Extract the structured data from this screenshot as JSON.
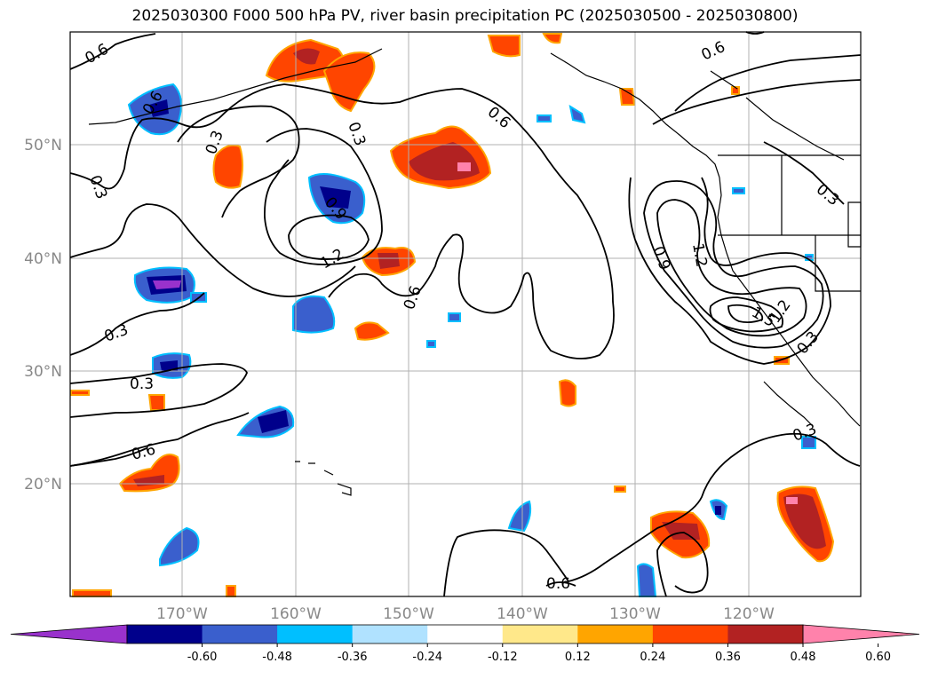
{
  "title": "2025030300 F000 500 hPa PV, river basin precipitation PC (2025030500 - 2025030800)",
  "map": {
    "lat_labels": [
      "50°N",
      "40°N",
      "30°N",
      "20°N"
    ],
    "lon_labels": [
      "170°W",
      "160°W",
      "150°W",
      "140°W",
      "130°W",
      "120°W"
    ],
    "contour_labels": [
      "0.6",
      "0.6",
      "0.6",
      "0.6",
      "0.3",
      "0.3",
      "0.9",
      "1.2",
      "0.3",
      "0.3",
      "0.3",
      "0.6",
      "0.6",
      "0.9",
      "1.2",
      "1.5",
      "1.2",
      "0.3",
      "0.3",
      "0.3",
      "0.6"
    ]
  },
  "colorbar": {
    "tick_labels": [
      "-0.60",
      "-0.48",
      "-0.36",
      "-0.24",
      "-0.12",
      "0.12",
      "0.24",
      "0.36",
      "0.48",
      "0.60"
    ],
    "colors": [
      "#9932cc",
      "#00008b",
      "#3a5fcd",
      "#00bfff",
      "#b0e2ff",
      "#ffffff",
      "#ffe88a",
      "#ffa500",
      "#ff4500",
      "#b22222",
      "#ff82ab"
    ]
  }
}
